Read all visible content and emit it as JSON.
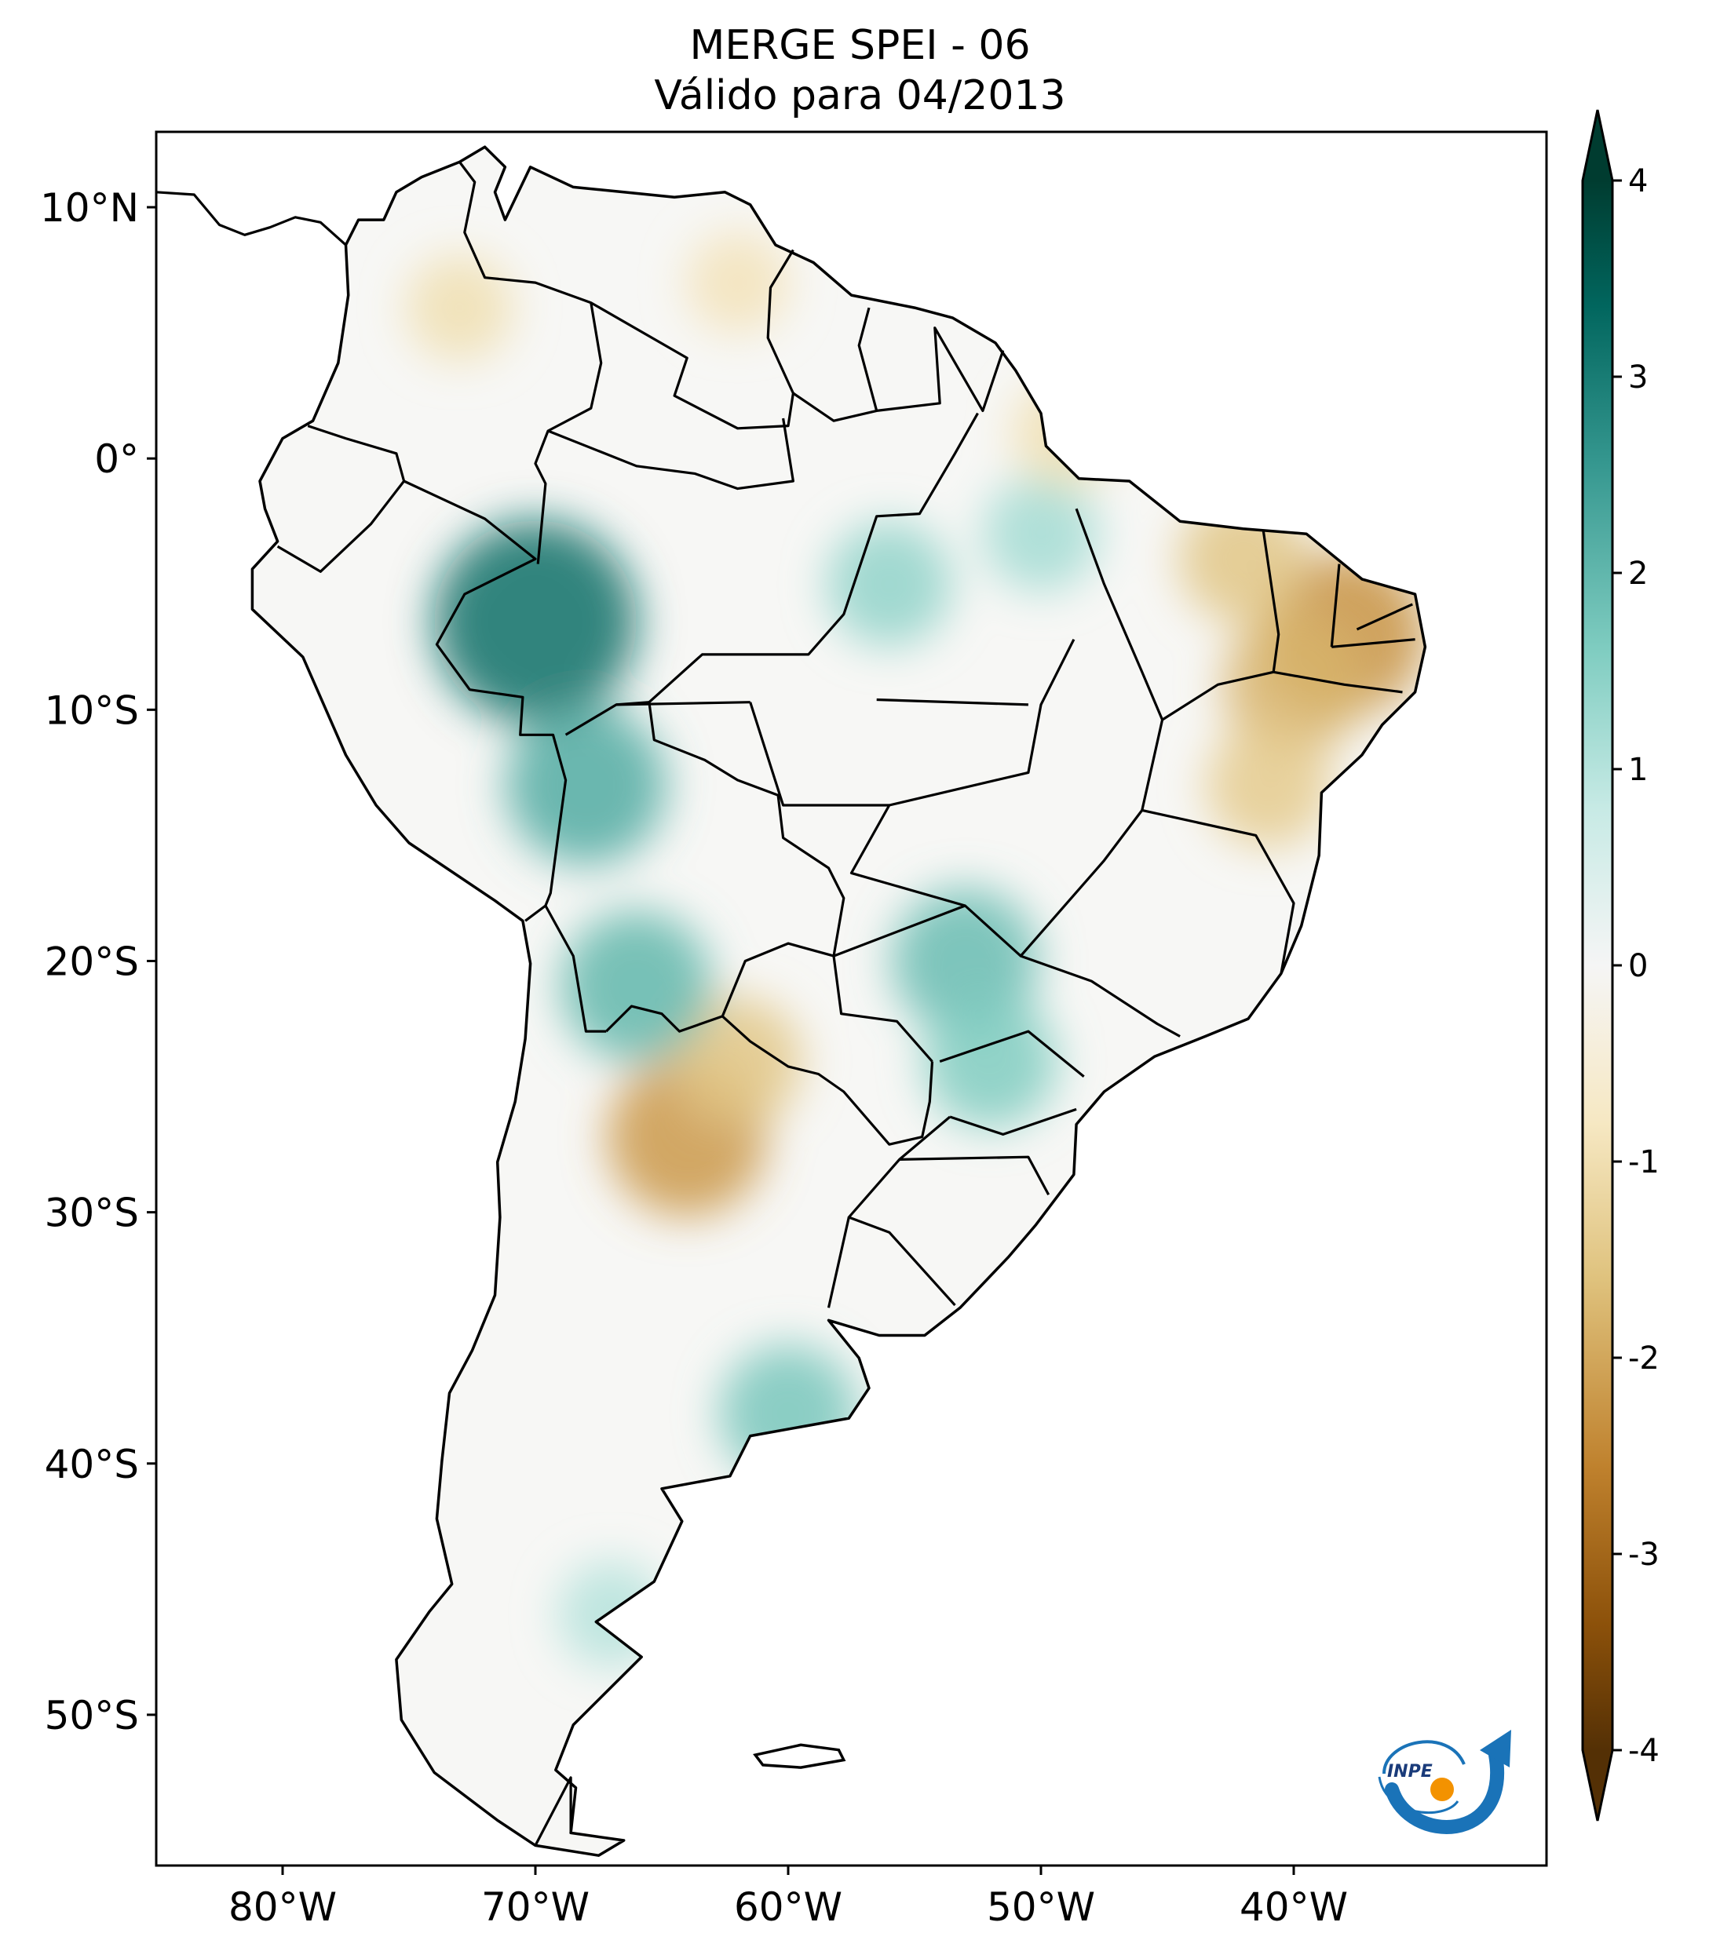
{
  "title": {
    "line1": "MERGE   SPEI - 06",
    "line2": "Válido para 04/2013"
  },
  "map": {
    "extent": {
      "lon_min": -85,
      "lon_max": -30,
      "lat_min": -56,
      "lat_max": 13
    },
    "lat_ticks": [
      {
        "value": 10,
        "label": "10°N"
      },
      {
        "value": 0,
        "label": "0°"
      },
      {
        "value": -10,
        "label": "10°S"
      },
      {
        "value": -20,
        "label": "20°S"
      },
      {
        "value": -30,
        "label": "30°S"
      },
      {
        "value": -40,
        "label": "40°S"
      },
      {
        "value": -50,
        "label": "50°S"
      }
    ],
    "lon_ticks": [
      {
        "value": -80,
        "label": "80°W"
      },
      {
        "value": -70,
        "label": "70°W"
      },
      {
        "value": -60,
        "label": "60°W"
      },
      {
        "value": -50,
        "label": "50°W"
      },
      {
        "value": -40,
        "label": "40°W"
      }
    ],
    "anomalies": [
      {
        "lon": -38,
        "lat": -7,
        "spei": -2.3
      },
      {
        "lon": -40,
        "lat": -9,
        "spei": -1.8
      },
      {
        "lon": -42,
        "lat": -4,
        "spei": -1.5
      },
      {
        "lon": -41,
        "lat": -13,
        "spei": -1.4
      },
      {
        "lon": -64,
        "lat": -27,
        "spei": -2.2
      },
      {
        "lon": -62,
        "lat": -24,
        "spei": -1.5
      },
      {
        "lon": -70,
        "lat": -6.5,
        "spei": 3.2
      },
      {
        "lon": -68,
        "lat": -13,
        "spei": 2.2
      },
      {
        "lon": -66,
        "lat": -21,
        "spei": 2.0
      },
      {
        "lon": -53,
        "lat": -20,
        "spei": 1.9
      },
      {
        "lon": -52,
        "lat": -24,
        "spei": 1.6
      },
      {
        "lon": -60,
        "lat": -38,
        "spei": 1.7
      },
      {
        "lon": -56,
        "lat": -5,
        "spei": 1.4
      },
      {
        "lon": -50,
        "lat": -3,
        "spei": 1.2
      },
      {
        "lon": -73,
        "lat": 6,
        "spei": -1.0
      },
      {
        "lon": -62,
        "lat": 7,
        "spei": -0.9
      },
      {
        "lon": -49,
        "lat": 1,
        "spei": -1.0
      },
      {
        "lon": -67,
        "lat": -46,
        "spei": 1.0
      }
    ]
  },
  "colorbar": {
    "min": -4,
    "max": 4,
    "extend": "both",
    "ticks": [
      {
        "value": 4,
        "label": "4"
      },
      {
        "value": 3,
        "label": "3"
      },
      {
        "value": 2,
        "label": "2"
      },
      {
        "value": 1,
        "label": "1"
      },
      {
        "value": 0,
        "label": "0"
      },
      {
        "value": -1,
        "label": "-1"
      },
      {
        "value": -2,
        "label": "-2"
      },
      {
        "value": -3,
        "label": "-3"
      },
      {
        "value": -4,
        "label": "-4"
      }
    ],
    "colormap": "BrBG",
    "colors": {
      "dry_extreme": "#543005",
      "dry_strong": "#8c510a",
      "dry_moderate": "#bf812d",
      "dry_mild": "#dfc27d",
      "dry_light": "#f6e8c3",
      "neutral": "#f5f5f5",
      "wet_light": "#c7eae5",
      "wet_mild": "#80cdc1",
      "wet_moderate": "#35978f",
      "wet_strong": "#01665e",
      "wet_extreme": "#003c30"
    }
  },
  "logo": {
    "text": "INPE",
    "colors": {
      "blue": "#1a73b8",
      "orange": "#f39200"
    }
  }
}
